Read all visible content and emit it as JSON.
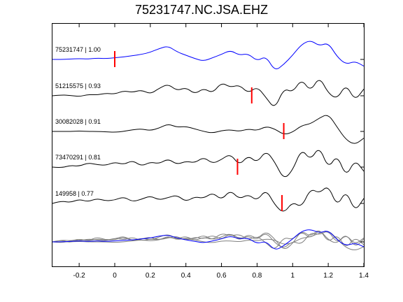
{
  "chart_data": {
    "type": "line",
    "title": "75231747.NC.JSA.EHZ",
    "xlabel": "",
    "ylabel": "",
    "xlim": [
      -0.35,
      1.4
    ],
    "xticks": [
      -0.2,
      0,
      0.2,
      0.4,
      0.6,
      0.8,
      1,
      1.2,
      1.4
    ],
    "xtick_labels": [
      "-0.2",
      "0",
      "0.2",
      "0.4",
      "0.6",
      "0.8",
      "1",
      "1.2",
      "1.4"
    ],
    "grid": false,
    "legend": "none",
    "colors": {
      "reference": "#0000ff",
      "trace": "#000000",
      "pick": "#ff0000",
      "stack": "#808080"
    },
    "traces": [
      {
        "label": "75231747 | 1.00",
        "color": "#0000ff",
        "pick_time": 0.0,
        "x": [
          -0.35,
          -0.3,
          -0.25,
          -0.2,
          -0.15,
          -0.1,
          -0.05,
          0,
          0.05,
          0.1,
          0.15,
          0.2,
          0.25,
          0.3,
          0.35,
          0.4,
          0.45,
          0.5,
          0.55,
          0.6,
          0.65,
          0.7,
          0.75,
          0.8,
          0.85,
          0.9,
          0.95,
          1.0,
          1.05,
          1.1,
          1.15,
          1.2,
          1.25,
          1.3,
          1.35,
          1.4
        ],
        "y": [
          0,
          0,
          0.05,
          0.1,
          0.05,
          0.15,
          0.1,
          0.2,
          0.3,
          0.45,
          0.6,
          0.85,
          1.3,
          1.6,
          0.9,
          0.5,
          0.1,
          -0.2,
          0.2,
          0.6,
          1.1,
          0.5,
          0.7,
          -0.2,
          0.4,
          -1.4,
          -0.6,
          0.5,
          1.8,
          2.3,
          1.6,
          2.0,
          0.3,
          -0.6,
          -0.2,
          -0.8
        ]
      },
      {
        "label": "51215575 | 0.93",
        "color": "#000000",
        "pick_time": 0.77,
        "x": [
          -0.35,
          -0.3,
          -0.25,
          -0.2,
          -0.15,
          -0.1,
          -0.05,
          0,
          0.05,
          0.1,
          0.15,
          0.2,
          0.25,
          0.3,
          0.35,
          0.4,
          0.45,
          0.5,
          0.55,
          0.6,
          0.65,
          0.7,
          0.75,
          0.8,
          0.85,
          0.9,
          0.95,
          1.0,
          1.05,
          1.1,
          1.15,
          1.2,
          1.25,
          1.3,
          1.35,
          1.4
        ],
        "y": [
          0,
          0.1,
          0.05,
          -0.1,
          0.15,
          0.1,
          0.3,
          0.2,
          0.6,
          0.4,
          0.7,
          0.2,
          0.9,
          1.4,
          0.6,
          1.0,
          0.2,
          0.9,
          0.3,
          1.6,
          1.0,
          1.3,
          0.3,
          1.1,
          -0.2,
          -1.6,
          0.9,
          0.4,
          2.0,
          0.5,
          2.3,
          0.3,
          -0.4,
          1.4,
          -0.6,
          0.8
        ]
      },
      {
        "label": "30082028 | 0.91",
        "color": "#000000",
        "pick_time": 0.95,
        "x": [
          -0.35,
          -0.3,
          -0.25,
          -0.2,
          -0.15,
          -0.1,
          -0.05,
          0,
          0.05,
          0.1,
          0.15,
          0.2,
          0.25,
          0.3,
          0.35,
          0.4,
          0.45,
          0.5,
          0.55,
          0.6,
          0.65,
          0.7,
          0.75,
          0.8,
          0.85,
          0.9,
          0.95,
          1.0,
          1.05,
          1.1,
          1.15,
          1.2,
          1.25,
          1.3,
          1.35,
          1.4
        ],
        "y": [
          0,
          0,
          0,
          0.05,
          0,
          0,
          -0.05,
          -0.1,
          0,
          0.2,
          0.3,
          0.1,
          0.4,
          0.9,
          0.5,
          0.6,
          0.3,
          0.0,
          -0.2,
          0.1,
          0.2,
          0.0,
          0.3,
          0.1,
          0.6,
          0.3,
          -0.4,
          -0.1,
          0.7,
          0.9,
          1.6,
          2.1,
          0.5,
          -1.0,
          -1.6,
          -0.8
        ]
      },
      {
        "label": "73470291 | 0.81",
        "color": "#000000",
        "pick_time": 0.69,
        "x": [
          -0.35,
          -0.3,
          -0.25,
          -0.2,
          -0.15,
          -0.1,
          -0.05,
          0,
          0.05,
          0.1,
          0.15,
          0.2,
          0.25,
          0.3,
          0.35,
          0.4,
          0.45,
          0.5,
          0.55,
          0.6,
          0.65,
          0.7,
          0.75,
          0.8,
          0.85,
          0.9,
          0.95,
          1.0,
          1.05,
          1.1,
          1.15,
          1.2,
          1.25,
          1.3,
          1.35,
          1.4
        ],
        "y": [
          0,
          -0.1,
          0.2,
          0.1,
          0.5,
          0.3,
          0.2,
          0.6,
          0.3,
          0.8,
          0.1,
          0.6,
          0.4,
          1.0,
          0.3,
          0.7,
          0.5,
          1.2,
          0.4,
          0.9,
          1.6,
          0.2,
          1.4,
          0.5,
          2.0,
          0.6,
          -1.5,
          -0.4,
          2.2,
          0.8,
          2.5,
          -0.2,
          1.5,
          -1.2,
          0.9,
          -0.5
        ]
      },
      {
        "label": "149958 | 0.77",
        "color": "#000000",
        "pick_time": 0.94,
        "x": [
          -0.35,
          -0.3,
          -0.25,
          -0.2,
          -0.15,
          -0.1,
          -0.05,
          0,
          0.05,
          0.1,
          0.15,
          0.2,
          0.25,
          0.3,
          0.35,
          0.4,
          0.45,
          0.5,
          0.55,
          0.6,
          0.65,
          0.7,
          0.75,
          0.8,
          0.85,
          0.9,
          0.95,
          1.0,
          1.05,
          1.1,
          1.15,
          1.2,
          1.25,
          1.3,
          1.35,
          1.4
        ],
        "y": [
          0,
          0.3,
          0.1,
          0.5,
          0.2,
          0.6,
          0.3,
          0.4,
          0.8,
          0.2,
          0.5,
          0.9,
          0.4,
          0.7,
          1.0,
          0.2,
          0.8,
          0.6,
          1.3,
          0.4,
          1.6,
          0.5,
          1.1,
          0.3,
          1.7,
          -0.2,
          -1.2,
          0.2,
          -0.5,
          1.8,
          1.2,
          2.2,
          -0.4,
          1.6,
          -1.0,
          0.6
        ]
      }
    ],
    "stack_overlay": {
      "x": [
        -0.35,
        -0.3,
        -0.25,
        -0.2,
        -0.15,
        -0.1,
        -0.05,
        0,
        0.05,
        0.1,
        0.15,
        0.2,
        0.25,
        0.3,
        0.35,
        0.4,
        0.45,
        0.5,
        0.55,
        0.6,
        0.65,
        0.7,
        0.75,
        0.8,
        0.85,
        0.9,
        0.95,
        1.0,
        1.05,
        1.1,
        1.15,
        1.2,
        1.25,
        1.3,
        1.35,
        1.4
      ],
      "reference": [
        0,
        0,
        0.05,
        0.1,
        0.05,
        0.1,
        0.05,
        0.1,
        0.15,
        0.2,
        0.3,
        0.4,
        0.6,
        0.7,
        0.4,
        0.2,
        0.05,
        -0.1,
        0.1,
        0.3,
        0.6,
        0.3,
        0.4,
        -0.2,
        0.1,
        -0.9,
        -0.4,
        0.3,
        1.1,
        1.3,
        0.9,
        1.2,
        0.2,
        -0.4,
        -0.1,
        -0.5
      ],
      "others": [
        [
          0,
          0.2,
          -0.1,
          0.3,
          0.1,
          0.5,
          0.2,
          0.3,
          0.6,
          0.1,
          0.4,
          0.2,
          0.5,
          0.8,
          0.3,
          0.6,
          0.1,
          0.5,
          0.2,
          0.9,
          0.6,
          0.8,
          0.2,
          0.6,
          -0.1,
          -0.9,
          0.5,
          0.2,
          1.1,
          0.3,
          1.3,
          0.2,
          -0.2,
          0.8,
          -0.3,
          0.4
        ],
        [
          0,
          0,
          0,
          0.05,
          0,
          0,
          0,
          -0.05,
          0,
          0.1,
          0.2,
          0.1,
          0.2,
          0.5,
          0.3,
          0.3,
          0.2,
          0,
          -0.1,
          0.1,
          0.1,
          0,
          0.2,
          0.1,
          0.3,
          0.2,
          -0.3,
          -0.1,
          0.4,
          0.5,
          0.9,
          1.2,
          0.3,
          -0.6,
          -0.9,
          -0.5
        ],
        [
          0,
          -0.1,
          0.1,
          0.1,
          0.3,
          0.2,
          0.1,
          0.4,
          0.2,
          0.5,
          0.1,
          0.3,
          0.2,
          0.6,
          0.2,
          0.4,
          0.3,
          0.7,
          0.2,
          0.5,
          0.9,
          0.1,
          0.8,
          0.3,
          1.1,
          0.3,
          -0.9,
          -0.2,
          1.2,
          0.5,
          1.4,
          -0.1,
          0.8,
          -0.7,
          0.5,
          -0.3
        ],
        [
          0,
          0.2,
          0.1,
          0.3,
          0.1,
          0.3,
          0.2,
          0.2,
          0.5,
          0.1,
          0.3,
          0.5,
          0.2,
          0.4,
          0.6,
          0.1,
          0.5,
          0.3,
          0.7,
          0.2,
          0.9,
          0.3,
          0.6,
          0.2,
          1.0,
          -0.1,
          -0.7,
          0.1,
          -0.3,
          1.0,
          0.7,
          1.2,
          -0.2,
          0.9,
          -0.6,
          0.3
        ]
      ]
    }
  }
}
